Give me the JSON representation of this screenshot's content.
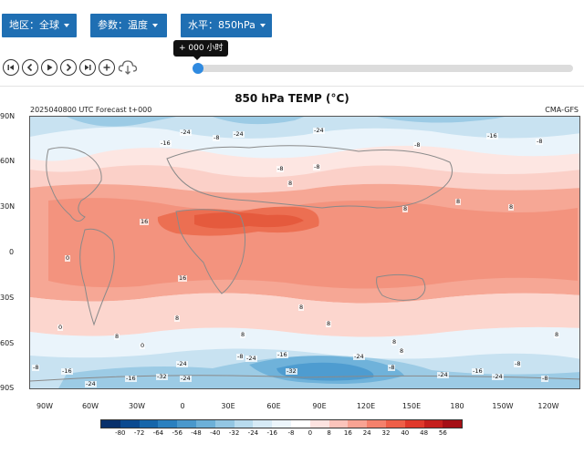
{
  "controls": {
    "region_label": "地区：全球",
    "param_label": "参数：温度",
    "level_label": "水平：850hPa"
  },
  "player": {
    "tooltip": "+ 000 小时",
    "progress": 0,
    "buttons": [
      "first-icon",
      "prev-icon",
      "play-icon",
      "next-icon",
      "last-icon",
      "zoom-in-icon",
      "cloud-download-icon"
    ]
  },
  "map": {
    "title": "850 hPa TEMP (°C)",
    "run_label": "2025040800 UTC Forecast t+000",
    "source": "CMA-GFS",
    "lat_labels": [
      "90N",
      "60N",
      "30N",
      "0",
      "30S",
      "60S",
      "90S"
    ],
    "lon_labels": [
      "90W",
      "60W",
      "30W",
      "0",
      "30E",
      "60E",
      "90E",
      "120E",
      "150E",
      "180",
      "150W",
      "120W"
    ],
    "contour_labels": [
      "-24",
      "-8",
      "-24",
      "-16",
      "-24",
      "-8",
      "-16",
      "-8",
      "-8",
      "-8",
      "16",
      "8",
      "8",
      "8",
      "8",
      "16",
      "8",
      "0",
      "8",
      "8",
      "8",
      "0",
      "8",
      "8",
      "8",
      "-8",
      "-24",
      "-16",
      "-24",
      "-24",
      "-8",
      "-16",
      "-24",
      "-32",
      "-32",
      "-8",
      "-24",
      "-16",
      "-8",
      "-24",
      "-16",
      "-24",
      "-8",
      "8",
      "0"
    ]
  },
  "colorbar": {
    "labels": [
      "-80",
      "-72",
      "-64",
      "-56",
      "-48",
      "-40",
      "-32",
      "-24",
      "-16",
      "-8",
      "0",
      "8",
      "16",
      "24",
      "32",
      "40",
      "48",
      "56"
    ],
    "colors": [
      "#08306b",
      "#0b4a90",
      "#1666aa",
      "#2b80bf",
      "#4a98cc",
      "#6db0d8",
      "#93c6e3",
      "#b8dbee",
      "#d6eaf6",
      "#ecf5fb",
      "#ffffff",
      "#fde3e0",
      "#fbc4bb",
      "#f8a393",
      "#f4816c",
      "#ee5f48",
      "#e0392b",
      "#c51f1c",
      "#a50f15"
    ]
  }
}
